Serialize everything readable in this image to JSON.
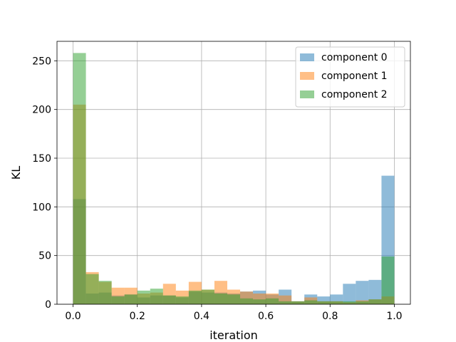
{
  "chart_data": {
    "type": "bar",
    "histogram": true,
    "xlabel": "iteration",
    "ylabel": "KL",
    "xlim": [
      -0.05,
      1.05
    ],
    "ylim": [
      0,
      270
    ],
    "xticks": [
      0.0,
      0.2,
      0.4,
      0.6,
      0.8,
      1.0
    ],
    "xtick_labels": [
      "0.0",
      "0.2",
      "0.4",
      "0.6",
      "0.8",
      "1.0"
    ],
    "yticks": [
      0,
      50,
      100,
      150,
      200,
      250
    ],
    "ytick_labels": [
      "0",
      "50",
      "100",
      "150",
      "200",
      "250"
    ],
    "grid": true,
    "legend_position": "top-right",
    "bins": 25,
    "bin_edges": [
      0.0,
      0.04,
      0.08,
      0.12,
      0.16,
      0.2,
      0.24,
      0.28,
      0.32,
      0.36,
      0.4,
      0.44,
      0.48,
      0.52,
      0.56,
      0.6,
      0.64,
      0.68,
      0.72,
      0.76,
      0.8,
      0.84,
      0.88,
      0.92,
      0.96,
      1.0
    ],
    "series": [
      {
        "name": "component 0",
        "color": "#1f77b4",
        "values": [
          108,
          11,
          12,
          9,
          10,
          7,
          9,
          9,
          7,
          13,
          12,
          12,
          11,
          13,
          14,
          10,
          15,
          3,
          10,
          8,
          10,
          21,
          24,
          25,
          132
        ]
      },
      {
        "name": "component 1",
        "color": "#ff7f0e",
        "values": [
          205,
          33,
          23,
          17,
          17,
          11,
          12,
          21,
          14,
          23,
          15,
          24,
          15,
          13,
          11,
          11,
          9,
          3,
          7,
          3,
          3,
          2,
          4,
          5,
          8
        ]
      },
      {
        "name": "component 2",
        "color": "#2ca02c",
        "values": [
          258,
          31,
          24,
          8,
          10,
          14,
          16,
          9,
          8,
          14,
          15,
          11,
          10,
          6,
          5,
          6,
          3,
          3,
          4,
          3,
          3,
          3,
          3,
          5,
          49
        ]
      }
    ]
  }
}
